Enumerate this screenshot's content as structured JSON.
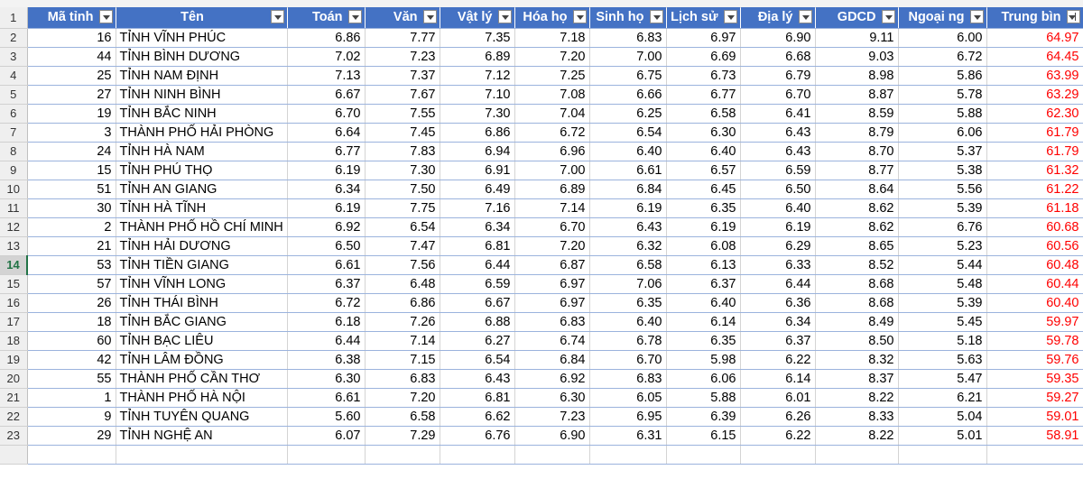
{
  "row_numbers": [
    1,
    2,
    3,
    4,
    5,
    6,
    7,
    8,
    9,
    10,
    11,
    12,
    13,
    14,
    15,
    16,
    17,
    18,
    19,
    20,
    21,
    22,
    23
  ],
  "table": {
    "header": [
      "Mã tỉnh",
      "Tên",
      "Toán",
      "Văn",
      "Vật lý",
      "Hóa họ",
      "Sinh họ",
      "Lịch sử",
      "Địa lý",
      "GDCD",
      "Ngoại ng",
      "Trung bìn"
    ],
    "rows": [
      [
        "16",
        "TỈNH VĨNH PHÚC",
        "6.86",
        "7.77",
        "7.35",
        "7.18",
        "6.83",
        "6.97",
        "6.90",
        "9.11",
        "6.00",
        "64.97"
      ],
      [
        "44",
        "TỈNH BÌNH DƯƠNG",
        "7.02",
        "7.23",
        "6.89",
        "7.20",
        "7.00",
        "6.69",
        "6.68",
        "9.03",
        "6.72",
        "64.45"
      ],
      [
        "25",
        "TỈNH NAM ĐỊNH",
        "7.13",
        "7.37",
        "7.12",
        "7.25",
        "6.75",
        "6.73",
        "6.79",
        "8.98",
        "5.86",
        "63.99"
      ],
      [
        "27",
        "TỈNH NINH BÌNH",
        "6.67",
        "7.67",
        "7.10",
        "7.08",
        "6.66",
        "6.77",
        "6.70",
        "8.87",
        "5.78",
        "63.29"
      ],
      [
        "19",
        "TỈNH BẮC NINH",
        "6.70",
        "7.55",
        "7.30",
        "7.04",
        "6.25",
        "6.58",
        "6.41",
        "8.59",
        "5.88",
        "62.30"
      ],
      [
        "3",
        "THÀNH PHỐ HẢI PHÒNG",
        "6.64",
        "7.45",
        "6.86",
        "6.72",
        "6.54",
        "6.30",
        "6.43",
        "8.79",
        "6.06",
        "61.79"
      ],
      [
        "24",
        "TỈNH HÀ NAM",
        "6.77",
        "7.83",
        "6.94",
        "6.96",
        "6.40",
        "6.40",
        "6.43",
        "8.70",
        "5.37",
        "61.79"
      ],
      [
        "15",
        "TỈNH PHÚ THỌ",
        "6.19",
        "7.30",
        "6.91",
        "7.00",
        "6.61",
        "6.57",
        "6.59",
        "8.77",
        "5.38",
        "61.32"
      ],
      [
        "51",
        "TỈNH AN GIANG",
        "6.34",
        "7.50",
        "6.49",
        "6.89",
        "6.84",
        "6.45",
        "6.50",
        "8.64",
        "5.56",
        "61.22"
      ],
      [
        "30",
        "TỈNH HÀ TĨNH",
        "6.19",
        "7.75",
        "7.16",
        "7.14",
        "6.19",
        "6.35",
        "6.40",
        "8.62",
        "5.39",
        "61.18"
      ],
      [
        "2",
        "THÀNH PHỐ HỒ CHÍ MINH",
        "6.92",
        "6.54",
        "6.34",
        "6.70",
        "6.43",
        "6.19",
        "6.19",
        "8.62",
        "6.76",
        "60.68"
      ],
      [
        "21",
        "TỈNH HẢI DƯƠNG",
        "6.50",
        "7.47",
        "6.81",
        "7.20",
        "6.32",
        "6.08",
        "6.29",
        "8.65",
        "5.23",
        "60.56"
      ],
      [
        "53",
        "TỈNH TIỀN GIANG",
        "6.61",
        "7.56",
        "6.44",
        "6.87",
        "6.58",
        "6.13",
        "6.33",
        "8.52",
        "5.44",
        "60.48"
      ],
      [
        "57",
        "TỈNH VĨNH LONG",
        "6.37",
        "6.48",
        "6.59",
        "6.97",
        "7.06",
        "6.37",
        "6.44",
        "8.68",
        "5.48",
        "60.44"
      ],
      [
        "26",
        "TỈNH THÁI BÌNH",
        "6.72",
        "6.86",
        "6.67",
        "6.97",
        "6.35",
        "6.40",
        "6.36",
        "8.68",
        "5.39",
        "60.40"
      ],
      [
        "18",
        "TỈNH BẮC GIANG",
        "6.18",
        "7.26",
        "6.88",
        "6.83",
        "6.40",
        "6.14",
        "6.34",
        "8.49",
        "5.45",
        "59.97"
      ],
      [
        "60",
        "TỈNH BẠC LIÊU",
        "6.44",
        "7.14",
        "6.27",
        "6.74",
        "6.78",
        "6.35",
        "6.37",
        "8.50",
        "5.18",
        "59.78"
      ],
      [
        "42",
        "TỈNH LÂM ĐỒNG",
        "6.38",
        "7.15",
        "6.54",
        "6.84",
        "6.70",
        "5.98",
        "6.22",
        "8.32",
        "5.63",
        "59.76"
      ],
      [
        "55",
        "THÀNH PHỐ CẦN THƠ",
        "6.30",
        "6.83",
        "6.43",
        "6.92",
        "6.83",
        "6.06",
        "6.14",
        "8.37",
        "5.47",
        "59.35"
      ],
      [
        "1",
        "THÀNH PHỐ HÀ NỘI",
        "6.61",
        "7.20",
        "6.81",
        "6.30",
        "6.05",
        "5.88",
        "6.01",
        "8.22",
        "6.21",
        "59.27"
      ],
      [
        "9",
        "TỈNH TUYÊN QUANG",
        "5.60",
        "6.58",
        "6.62",
        "7.23",
        "6.95",
        "6.39",
        "6.26",
        "8.33",
        "5.04",
        "59.01"
      ],
      [
        "29",
        "TỈNH NGHỆ AN",
        "6.07",
        "7.29",
        "6.76",
        "6.90",
        "6.31",
        "6.15",
        "6.22",
        "8.22",
        "5.01",
        "58.91"
      ]
    ]
  }
}
